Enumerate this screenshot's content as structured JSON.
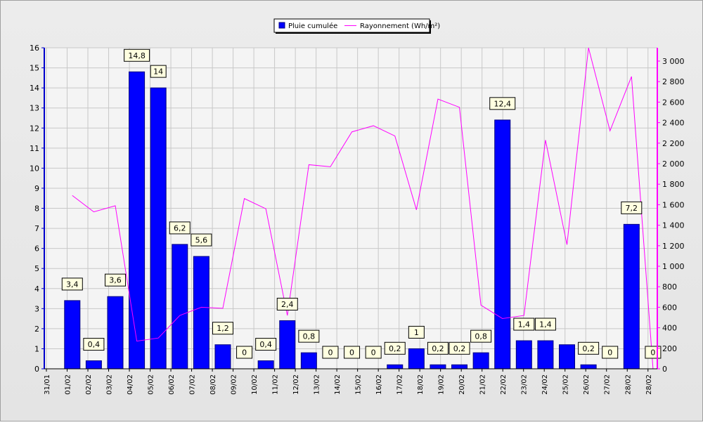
{
  "chart_data": {
    "type": "bar",
    "title": "",
    "legend": [
      {
        "label": "Pluie cumulée",
        "color": "#0000ff",
        "kind": "bar"
      },
      {
        "label": "Rayonnement (Wh/m²)",
        "color": "#ff00ff",
        "kind": "line"
      }
    ],
    "legend_position": "top-center",
    "x_tick_labels": [
      "31/01",
      "01/02",
      "02/02",
      "03/02",
      "04/02",
      "05/02",
      "06/02",
      "07/02",
      "08/02",
      "09/02",
      "10/02",
      "11/02",
      "12/02",
      "13/02",
      "14/02",
      "15/02",
      "16/02",
      "17/02",
      "18/02",
      "19/02",
      "20/02",
      "21/02",
      "22/02",
      "23/02",
      "24/02",
      "25/02",
      "26/02",
      "27/02",
      "28/02",
      "28/02"
    ],
    "categories": [
      "01/02",
      "02/02",
      "03/02",
      "04/02",
      "05/02",
      "06/02",
      "07/02",
      "08/02",
      "09/02",
      "10/02",
      "11/02",
      "12/02",
      "13/02",
      "14/02",
      "15/02",
      "16/02",
      "17/02",
      "18/02",
      "19/02",
      "20/02",
      "21/02",
      "22/02",
      "23/02",
      "24/02",
      "25/02",
      "26/02",
      "27/02",
      "28/02"
    ],
    "series": [
      {
        "name": "Pluie cumulée",
        "type": "bar",
        "axis": "left",
        "color": "#0000ff",
        "values": [
          3.4,
          0.4,
          3.6,
          14.8,
          14,
          6.2,
          5.6,
          1.2,
          0,
          0.4,
          2.4,
          0.8,
          0,
          0,
          0,
          0.2,
          1,
          0.2,
          0.2,
          0.8,
          12.4,
          1.4,
          1.4,
          1.2,
          0.2,
          0,
          7.2,
          0
        ],
        "labels": [
          "3,4",
          "0,4",
          "3,6",
          "14,8",
          "14",
          "6,2",
          "5,6",
          "1,2",
          "0",
          "0,4",
          "2,4",
          "0,8",
          "0",
          "0",
          "0",
          "0,2",
          "1",
          "0,2",
          "0,2",
          "0,8",
          "12,4",
          "1,4",
          "1,4",
          "",
          "0,2",
          "0",
          "7,2",
          "0"
        ]
      },
      {
        "name": "Rayonnement (Wh/m²)",
        "type": "line",
        "axis": "right",
        "color": "#ff00ff",
        "values": [
          1690,
          1530,
          1590,
          270,
          300,
          520,
          600,
          590,
          1660,
          1560,
          520,
          1990,
          1970,
          2310,
          2370,
          2270,
          1550,
          2630,
          2550,
          620,
          490,
          520,
          2230,
          1210,
          3130,
          2320,
          2850,
          0
        ]
      }
    ],
    "y_left": {
      "min": 0,
      "max": 16,
      "ticks": [
        0,
        1,
        2,
        3,
        4,
        5,
        6,
        7,
        8,
        9,
        10,
        11,
        12,
        13,
        14,
        15,
        16
      ]
    },
    "y_right": {
      "min": 0,
      "max": 3130,
      "ticks": [
        0,
        200,
        400,
        600,
        800,
        1000,
        1200,
        1400,
        1600,
        1800,
        2000,
        2200,
        2400,
        2600,
        2800,
        3000
      ],
      "tick_labels": [
        "0",
        "200",
        "400",
        "600",
        "800",
        "1 000",
        "1 200",
        "1 400",
        "1 600",
        "1 800",
        "2 000",
        "2 200",
        "2 400",
        "2 600",
        "2 800",
        "3 000"
      ]
    },
    "grid": true,
    "colors": {
      "plot_bg": "#f4f4f4",
      "grid": "#c8c8c8",
      "left_axis": "#0000cc",
      "right_axis": "#ff00ff",
      "label_bg": "#ffffe0"
    }
  }
}
